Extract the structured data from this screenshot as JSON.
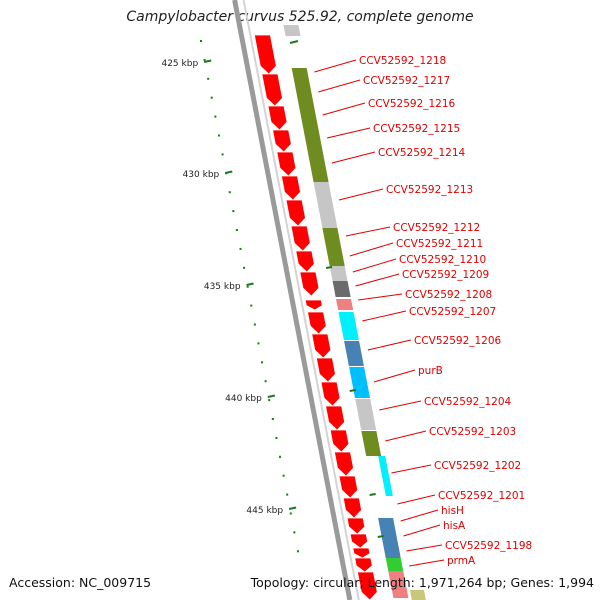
{
  "title": "Campylobacter curvus 525.92, complete genome",
  "footer": {
    "accession": "Accession: NC_009715",
    "summary": "Topology: circular; Length: 1,971,264 bp; Genes: 1,994"
  },
  "colors": {
    "backbone": "#9a9a9a",
    "cds_forward": "#ff0000",
    "label": "#e00000",
    "scale_tick": "#1a7a1a",
    "cog_olive": "#6e8c1f",
    "cog_gray": "#c6c6c6",
    "cog_dark_gray": "#6b6b6b",
    "cog_pink": "#f08080",
    "cog_cyan": "#00f0ff",
    "cog_steel_blue": "#4682b4",
    "cog_sky": "#00bfff",
    "cog_green": "#33cc33",
    "cog_khaki": "#c8c878"
  },
  "scale_labels": [
    "425 kbp",
    "430 kbp",
    "435 kbp",
    "440 kbp",
    "445 kbp"
  ],
  "genes": [
    {
      "label": "CCV52592_1218",
      "cog": "olive"
    },
    {
      "label": "CCV52592_1217",
      "cog": "olive"
    },
    {
      "label": "CCV52592_1216",
      "cog": "olive"
    },
    {
      "label": "CCV52592_1215",
      "cog": "olive"
    },
    {
      "label": "CCV52592_1214",
      "cog": "olive"
    },
    {
      "label": "CCV52592_1213",
      "cog": "gray"
    },
    {
      "label": "CCV52592_1212",
      "cog": "olive"
    },
    {
      "label": "CCV52592_1211",
      "cog": "olive"
    },
    {
      "label": "CCV52592_1210",
      "cog": "gray"
    },
    {
      "label": "CCV52592_1209",
      "cog": "dark_gray"
    },
    {
      "label": "CCV52592_1208",
      "cog": "pink"
    },
    {
      "label": "CCV52592_1207",
      "cog": "cyan"
    },
    {
      "label": "CCV52592_1206",
      "cog": "steel_blue"
    },
    {
      "label": "purB",
      "cog": "sky"
    },
    {
      "label": "CCV52592_1204",
      "cog": "gray"
    },
    {
      "label": "CCV52592_1203",
      "cog": "olive"
    },
    {
      "label": "CCV52592_1202",
      "cog": "cyan"
    },
    {
      "label": "CCV52592_1201",
      "cog": "cyan"
    },
    {
      "label": "hisH",
      "cog": "steel_blue"
    },
    {
      "label": "hisA",
      "cog": "steel_blue"
    },
    {
      "label": "CCV52592_1198",
      "cog": "green"
    },
    {
      "label": "prmA",
      "cog": "pink"
    }
  ]
}
